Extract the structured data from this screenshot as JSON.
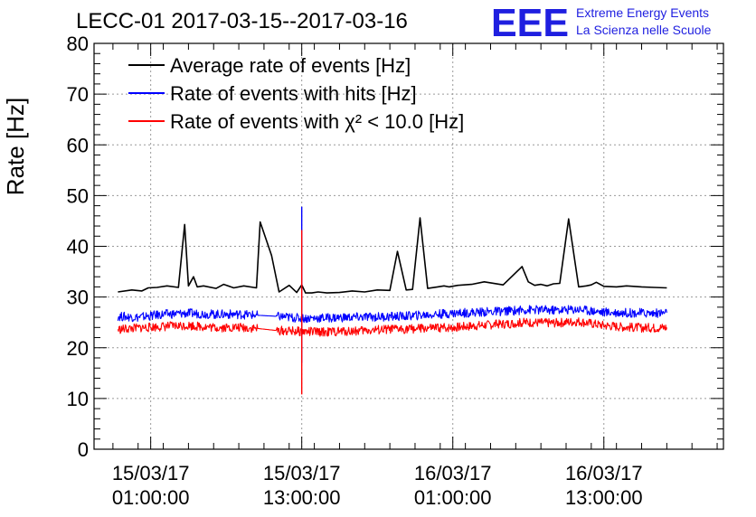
{
  "header": {
    "title": "LECC-01 2017-03-15--2017-03-16",
    "logo": "EEE",
    "logo_line1": "Extreme Energy Events",
    "logo_line2": "La Scienza nelle Scuole",
    "logo_color": "#1f1fe0"
  },
  "chart_data": {
    "type": "line",
    "title": "LECC-01 2017-03-15--2017-03-16",
    "ylabel": "Rate [Hz]",
    "xlabel": "",
    "ylim": [
      0,
      80
    ],
    "xlim": [
      -3.5,
      46.5
    ],
    "x_unit": "hours since 15/03/17 00:00:00",
    "grid": true,
    "legend_position": "top-left",
    "y_ticks": [
      "0",
      "10",
      "20",
      "30",
      "40",
      "50",
      "60",
      "70",
      "80"
    ],
    "x_ticks": [
      {
        "x": 1,
        "label_date": "15/03/17",
        "label_time": "01:00:00"
      },
      {
        "x": 13,
        "label_date": "15/03/17",
        "label_time": "13:00:00"
      },
      {
        "x": 25,
        "label_date": "16/03/17",
        "label_time": "01:00:00"
      },
      {
        "x": 37,
        "label_date": "16/03/17",
        "label_time": "13:00:00"
      }
    ],
    "series": [
      {
        "name": "Average rate of events [Hz]",
        "color": "#000000",
        "x": [
          -1.6,
          -0.5,
          0.3,
          0.8,
          1.5,
          2.3,
          3.2,
          3.7,
          4.0,
          4.4,
          4.7,
          5.2,
          6.2,
          6.8,
          7.6,
          8.4,
          9.4,
          9.7,
          10.6,
          11.2,
          12.0,
          12.6,
          13.0,
          13.3,
          13.8,
          14.3,
          15.0,
          16.0,
          17.0,
          18.0,
          19.0,
          20.0,
          20.6,
          21.3,
          21.8,
          22.4,
          23.0,
          23.8,
          24.3,
          24.7,
          25.4,
          26.5,
          27.5,
          29.0,
          30.5,
          31.0,
          31.5,
          32.0,
          32.5,
          33.0,
          33.5,
          34.2,
          35.0,
          35.6,
          36.0,
          36.4,
          37.0,
          38.0,
          38.8,
          40.0,
          41.0,
          42.0
        ],
        "y": [
          31.0,
          31.4,
          31.2,
          31.8,
          31.9,
          32.2,
          31.9,
          44.3,
          32.2,
          34.0,
          32.0,
          32.2,
          31.7,
          32.5,
          31.8,
          32.2,
          31.8,
          44.8,
          38.2,
          31.0,
          32.3,
          30.9,
          32.4,
          30.8,
          30.8,
          31.0,
          30.8,
          30.9,
          31.2,
          31.0,
          31.4,
          31.3,
          39.0,
          31.4,
          31.5,
          45.6,
          31.7,
          32.0,
          32.2,
          32.0,
          32.3,
          32.5,
          33.0,
          32.4,
          36.0,
          33.0,
          32.3,
          32.5,
          32.2,
          32.6,
          32.7,
          45.4,
          32.0,
          32.2,
          32.4,
          32.9,
          32.1,
          32.0,
          32.2,
          32.0,
          31.9,
          31.8
        ]
      },
      {
        "name": "Rate of events with hits [Hz]",
        "color": "#0000ff",
        "x": [
          -1.6,
          0.0,
          2.0,
          4.0,
          6.0,
          8.0,
          9.5,
          11.0,
          13.0,
          15.0,
          17.0,
          19.0,
          21.0,
          23.0,
          25.0,
          27.0,
          29.0,
          31.0,
          33.0,
          35.0,
          37.0,
          39.0,
          41.0,
          42.0
        ],
        "y": [
          26.2,
          26.0,
          26.6,
          26.8,
          26.6,
          26.6,
          26.4,
          26.2,
          25.8,
          25.9,
          26.0,
          26.1,
          26.2,
          26.5,
          26.8,
          27.0,
          27.2,
          27.5,
          27.4,
          27.6,
          27.0,
          26.9,
          26.8,
          26.9
        ]
      },
      {
        "name": "Rate of events with χ² < 10.0 [Hz]",
        "color": "#ff0000",
        "x": [
          -1.6,
          0.0,
          2.0,
          4.0,
          6.0,
          8.0,
          9.5,
          11.0,
          13.0,
          15.0,
          17.0,
          19.0,
          21.0,
          23.0,
          25.0,
          27.0,
          29.0,
          31.0,
          33.0,
          35.0,
          37.0,
          39.0,
          41.0,
          42.0
        ],
        "y": [
          23.6,
          23.9,
          24.2,
          24.4,
          24.0,
          24.0,
          23.8,
          23.4,
          23.2,
          23.1,
          23.3,
          23.5,
          23.7,
          23.8,
          24.0,
          24.4,
          24.7,
          25.0,
          24.9,
          25.2,
          24.4,
          24.0,
          23.9,
          24.0
        ]
      }
    ],
    "spikes": [
      {
        "series": 1,
        "x": 13.0,
        "y_min": 17.0,
        "y_max": 47.8
      },
      {
        "series": 2,
        "x": 13.0,
        "y_min": 10.8,
        "y_max": 43.2
      }
    ]
  }
}
